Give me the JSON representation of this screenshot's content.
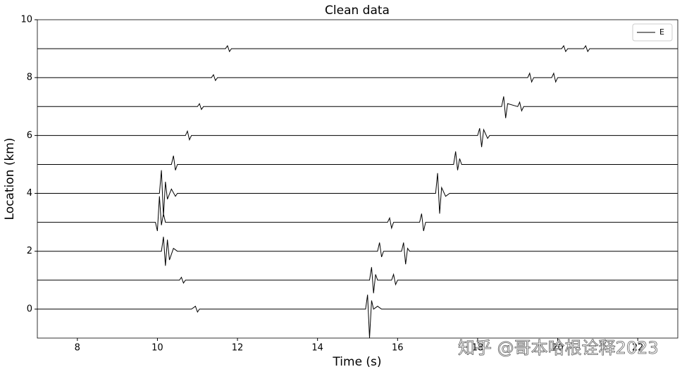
{
  "chart_data": {
    "type": "line",
    "title": "Clean data",
    "x_label": "Time (s)",
    "y_label": "Location (km)",
    "xlim": [
      7,
      23
    ],
    "ylim": [
      -1,
      10
    ],
    "xticks": [
      8,
      10,
      12,
      14,
      16,
      18,
      20,
      22
    ],
    "yticks": [
      0,
      2,
      4,
      6,
      8,
      10
    ],
    "legend": "upper right",
    "grid": false,
    "watermark": "知乎 @哥本哈根诠释2023",
    "series": [
      {
        "name": "E",
        "color": "#000000",
        "x": [
          7,
          10.85,
          10.95,
          11.0,
          11.05,
          15.2,
          15.25,
          15.3,
          15.35,
          15.4,
          15.5,
          15.6,
          23,
          0,
          7,
          10.55,
          10.6,
          10.65,
          10.7,
          15.3,
          15.35,
          15.4,
          15.45,
          15.5,
          15.85,
          15.9,
          15.95,
          16,
          23,
          0,
          7,
          10.1,
          10.15,
          10.2,
          10.25,
          10.3,
          10.4,
          10.5,
          15.5,
          15.55,
          15.6,
          15.65,
          16.1,
          16.15,
          16.2,
          16.25,
          16.3,
          23,
          0,
          7,
          9.95,
          10.0,
          10.05,
          10.1,
          10.15,
          10.2,
          15.75,
          15.8,
          15.85,
          15.9,
          16.55,
          16.6,
          16.65,
          16.7,
          23,
          0,
          7,
          10.05,
          10.1,
          10.15,
          10.2,
          10.25,
          10.35,
          10.45,
          10.5,
          16.95,
          17.0,
          17.05,
          17.1,
          17.2,
          17.3,
          23,
          0,
          7,
          10.35,
          10.4,
          10.45,
          10.5,
          17.4,
          17.45,
          17.5,
          17.55,
          17.6,
          23,
          0,
          7,
          10.7,
          10.75,
          10.8,
          10.85,
          18.0,
          18.05,
          18.1,
          18.15,
          18.25,
          18.3,
          23,
          0,
          7,
          11.0,
          11.05,
          11.1,
          11.15,
          18.6,
          18.65,
          18.7,
          18.75,
          19.0,
          19.05,
          19.1,
          19.15,
          23,
          0,
          7,
          11.35,
          11.4,
          11.45,
          11.5,
          19.25,
          19.3,
          19.35,
          19.4,
          19.85,
          19.9,
          19.95,
          20.0,
          23,
          0,
          7,
          11.7,
          11.75,
          11.8,
          11.85,
          20.1,
          20.15,
          20.2,
          20.25,
          20.65,
          20.7,
          20.75,
          20.8,
          23
        ],
        "values": [
          0,
          0,
          0.1,
          -0.1,
          0,
          0,
          0.5,
          -1,
          0.3,
          0,
          0.1,
          0,
          0,
          null,
          1,
          1,
          1.1,
          0.9,
          1,
          1,
          1.45,
          0.55,
          1.2,
          1,
          1,
          1.2,
          0.85,
          1,
          1,
          null,
          2,
          2,
          2.5,
          1.5,
          2.4,
          1.7,
          2.1,
          2,
          2,
          2.3,
          1.8,
          2,
          2,
          2.3,
          1.55,
          2.1,
          2,
          2,
          null,
          3,
          3,
          2.7,
          3.9,
          2.9,
          3.3,
          3,
          3,
          3.15,
          2.8,
          3,
          3,
          3.3,
          2.7,
          3,
          3,
          null,
          4,
          4,
          4.8,
          3.2,
          4.4,
          3.8,
          4.15,
          3.9,
          4,
          4,
          4.7,
          3.3,
          4.2,
          3.9,
          4,
          4,
          null,
          5,
          5,
          5.3,
          4.8,
          5,
          5,
          5.45,
          4.8,
          5.2,
          5,
          5,
          null,
          6,
          6,
          6.15,
          5.85,
          6,
          6,
          6.25,
          5.6,
          6.2,
          5.9,
          6,
          6,
          null,
          7,
          7,
          7.1,
          6.9,
          7,
          7,
          7.35,
          6.6,
          7.1,
          7,
          7.15,
          6.85,
          7,
          7,
          null,
          8,
          8,
          8.1,
          7.9,
          8,
          8,
          8.15,
          7.85,
          8,
          8,
          8.15,
          7.85,
          8,
          8,
          null,
          9,
          9,
          9.1,
          8.9,
          9,
          9,
          9.1,
          8.9,
          9,
          9,
          9.1,
          8.9,
          9,
          9
        ]
      }
    ]
  }
}
